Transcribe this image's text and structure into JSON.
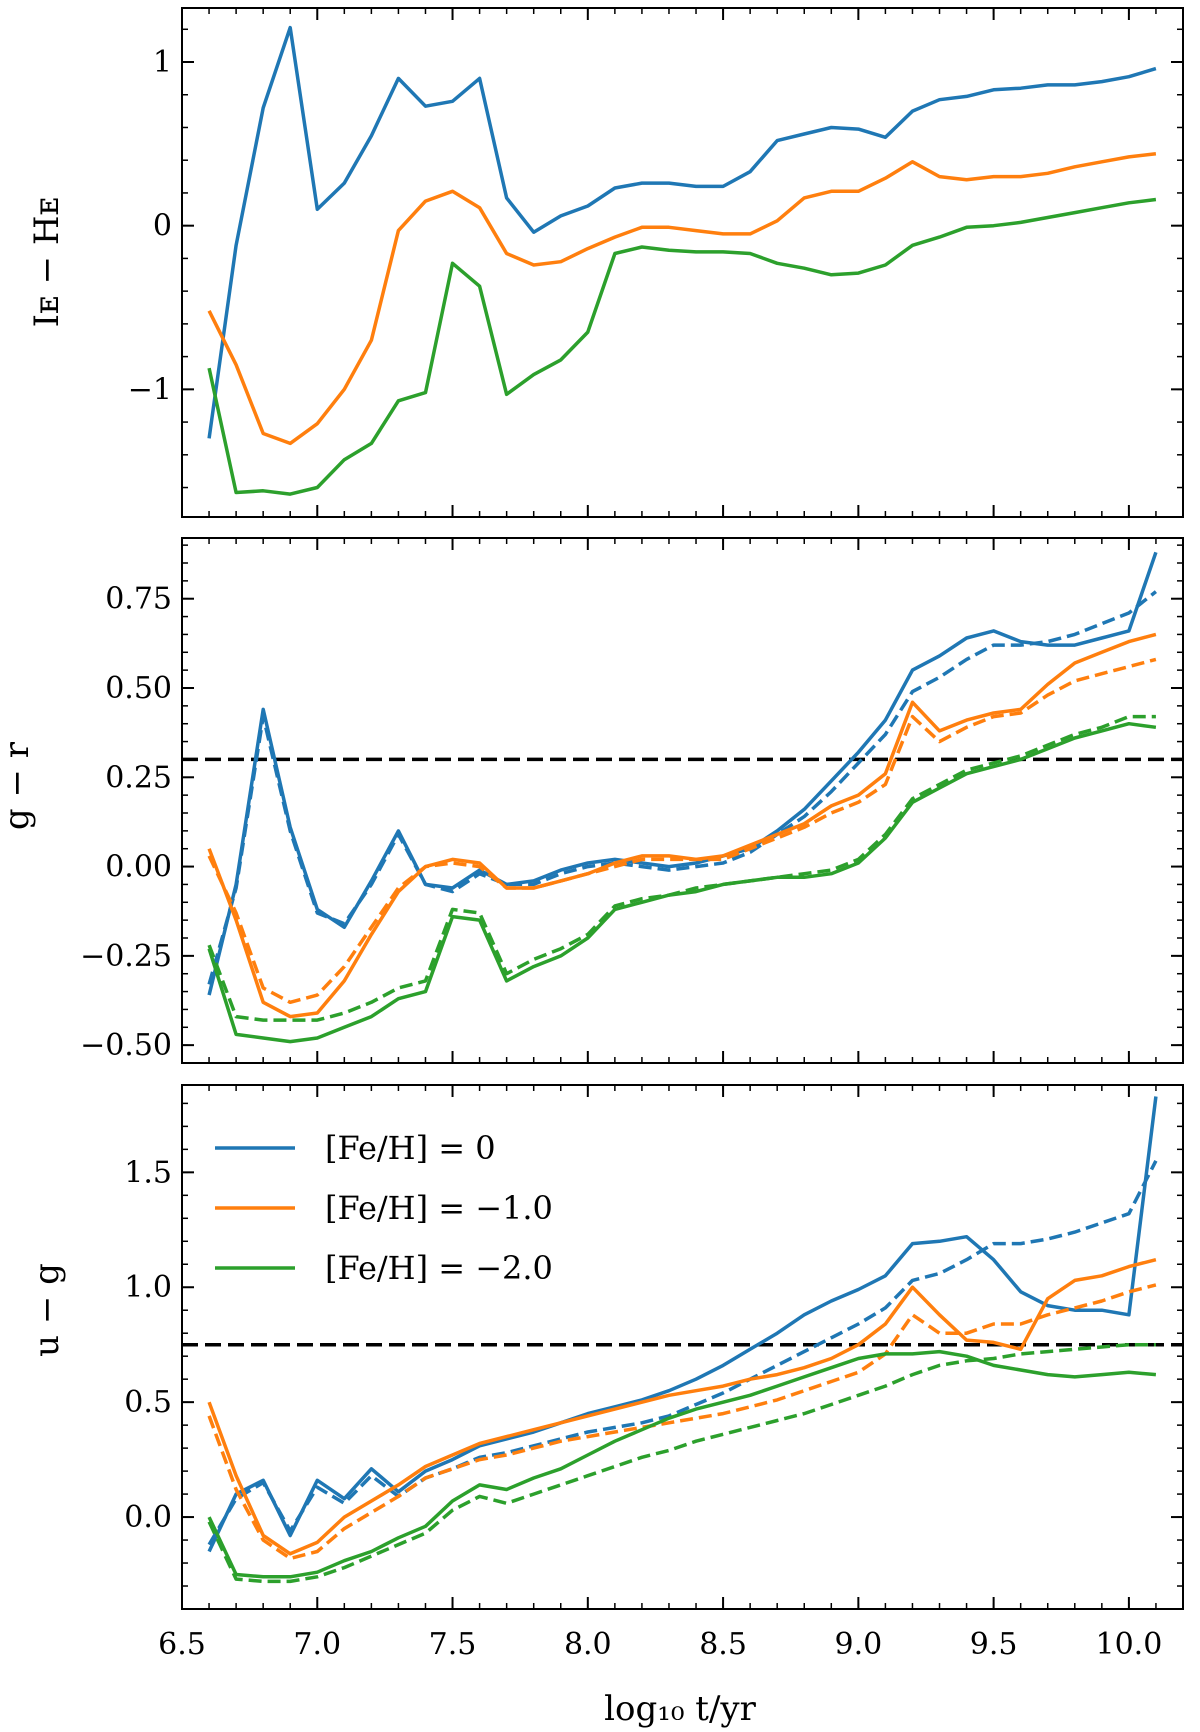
{
  "x_axis": {
    "label": "log₁₀ t/yr",
    "ticks": [
      "6.5",
      "7.0",
      "7.5",
      "8.0",
      "8.5",
      "9.0",
      "9.5",
      "10.0"
    ]
  },
  "legend": [
    "[Fe/H] = 0",
    "[Fe/H] = −1.0",
    "[Fe/H] = −2.0"
  ],
  "colors": {
    "fe0": "#1f77b4",
    "fem1": "#ff7f0e",
    "fem2": "#2ca02c",
    "reference_line": "#000000"
  },
  "chart_data": [
    {
      "type": "line",
      "ylabel": "I_E − H_E",
      "ylabel_text": "Iᴇ − Hᴇ",
      "xlim": [
        6.5,
        10.2
      ],
      "ylim": [
        -1.78,
        1.33
      ],
      "yticks": [
        1,
        0,
        -1
      ],
      "ytick_labels": [
        "1",
        "0",
        "−1"
      ],
      "x": [
        6.6,
        6.7,
        6.8,
        6.9,
        7.0,
        7.1,
        7.2,
        7.3,
        7.4,
        7.5,
        7.6,
        7.7,
        7.8,
        7.9,
        8.0,
        8.1,
        8.2,
        8.3,
        8.4,
        8.5,
        8.6,
        8.7,
        8.8,
        8.9,
        9.0,
        9.1,
        9.2,
        9.3,
        9.4,
        9.5,
        9.6,
        9.7,
        9.8,
        9.9,
        10.0,
        10.1
      ],
      "series": [
        {
          "name": "[Fe/H] = 0",
          "color_key": "fe0",
          "style": "solid",
          "values": [
            -1.3,
            -0.12,
            0.72,
            1.21,
            0.1,
            0.26,
            0.55,
            0.9,
            0.73,
            0.76,
            0.9,
            0.17,
            -0.04,
            0.06,
            0.12,
            0.23,
            0.26,
            0.26,
            0.24,
            0.24,
            0.33,
            0.52,
            0.56,
            0.6,
            0.59,
            0.54,
            0.7,
            0.77,
            0.79,
            0.83,
            0.84,
            0.86,
            0.86,
            0.88,
            0.91,
            0.96
          ]
        },
        {
          "name": "[Fe/H] = −1.0",
          "color_key": "fem1",
          "style": "solid",
          "values": [
            -0.52,
            -0.85,
            -1.27,
            -1.33,
            -1.21,
            -1.0,
            -0.7,
            -0.03,
            0.15,
            0.21,
            0.11,
            -0.17,
            -0.24,
            -0.22,
            -0.14,
            -0.07,
            -0.01,
            -0.01,
            -0.03,
            -0.05,
            -0.05,
            0.03,
            0.17,
            0.21,
            0.21,
            0.29,
            0.39,
            0.3,
            0.28,
            0.3,
            0.3,
            0.32,
            0.36,
            0.39,
            0.42,
            0.44
          ]
        },
        {
          "name": "[Fe/H] = −2.0",
          "color_key": "fem2",
          "style": "solid",
          "values": [
            -0.87,
            -1.63,
            -1.62,
            -1.64,
            -1.6,
            -1.43,
            -1.33,
            -1.07,
            -1.02,
            -0.23,
            -0.37,
            -1.03,
            -0.91,
            -0.82,
            -0.65,
            -0.17,
            -0.13,
            -0.15,
            -0.16,
            -0.16,
            -0.17,
            -0.23,
            -0.26,
            -0.3,
            -0.29,
            -0.24,
            -0.12,
            -0.07,
            -0.01,
            0.0,
            0.02,
            0.05,
            0.08,
            0.11,
            0.14,
            0.16
          ]
        }
      ]
    },
    {
      "type": "line",
      "ylabel": "g − r",
      "ylabel_text": "g − r",
      "xlim": [
        6.5,
        10.2
      ],
      "ylim": [
        -0.55,
        0.92
      ],
      "yticks": [
        0.75,
        0.5,
        0.25,
        0.0,
        -0.25,
        -0.5
      ],
      "ytick_labels": [
        "0.75",
        "0.50",
        "0.25",
        "0.00",
        "−0.25",
        "−0.50"
      ],
      "hline": 0.3,
      "x": [
        6.6,
        6.7,
        6.8,
        6.9,
        7.0,
        7.1,
        7.2,
        7.3,
        7.4,
        7.5,
        7.6,
        7.7,
        7.8,
        7.9,
        8.0,
        8.1,
        8.2,
        8.3,
        8.4,
        8.5,
        8.6,
        8.7,
        8.8,
        8.9,
        9.0,
        9.1,
        9.2,
        9.3,
        9.4,
        9.5,
        9.6,
        9.7,
        9.8,
        9.9,
        10.0,
        10.1
      ],
      "series": [
        {
          "name": "[Fe/H] = 0",
          "color_key": "fe0",
          "style": "solid",
          "values": [
            -0.36,
            -0.05,
            0.44,
            0.11,
            -0.12,
            -0.17,
            -0.04,
            0.1,
            -0.05,
            -0.06,
            -0.01,
            -0.05,
            -0.04,
            -0.01,
            0.01,
            0.02,
            0.01,
            0.0,
            0.01,
            0.03,
            0.05,
            0.1,
            0.16,
            0.24,
            0.32,
            0.41,
            0.55,
            0.59,
            0.64,
            0.66,
            0.63,
            0.62,
            0.62,
            0.64,
            0.66,
            0.88
          ]
        },
        {
          "name": "[Fe/H] = 0 (dashed)",
          "color_key": "fe0",
          "style": "dashed",
          "values": [
            -0.33,
            -0.06,
            0.42,
            0.1,
            -0.13,
            -0.16,
            -0.05,
            0.09,
            -0.05,
            -0.07,
            -0.02,
            -0.05,
            -0.05,
            -0.02,
            0.0,
            0.01,
            0.0,
            -0.01,
            0.0,
            0.01,
            0.04,
            0.09,
            0.14,
            0.21,
            0.29,
            0.37,
            0.49,
            0.53,
            0.58,
            0.62,
            0.62,
            0.63,
            0.65,
            0.68,
            0.71,
            0.77
          ]
        },
        {
          "name": "[Fe/H] = −1.0",
          "color_key": "fem1",
          "style": "solid",
          "values": [
            0.05,
            -0.15,
            -0.38,
            -0.42,
            -0.41,
            -0.32,
            -0.19,
            -0.07,
            0.0,
            0.02,
            0.01,
            -0.06,
            -0.06,
            -0.04,
            -0.02,
            0.01,
            0.03,
            0.03,
            0.02,
            0.03,
            0.06,
            0.09,
            0.12,
            0.17,
            0.2,
            0.26,
            0.46,
            0.38,
            0.41,
            0.43,
            0.44,
            0.51,
            0.57,
            0.6,
            0.63,
            0.65
          ]
        },
        {
          "name": "[Fe/H] = −1.0 (dashed)",
          "color_key": "fem1",
          "style": "dashed",
          "values": [
            0.03,
            -0.13,
            -0.34,
            -0.38,
            -0.36,
            -0.28,
            -0.17,
            -0.06,
            0.0,
            0.01,
            0.0,
            -0.06,
            -0.06,
            -0.04,
            -0.02,
            0.0,
            0.02,
            0.02,
            0.02,
            0.02,
            0.05,
            0.08,
            0.11,
            0.15,
            0.18,
            0.23,
            0.42,
            0.35,
            0.39,
            0.42,
            0.43,
            0.48,
            0.52,
            0.54,
            0.56,
            0.58
          ]
        },
        {
          "name": "[Fe/H] = −2.0",
          "color_key": "fem2",
          "style": "solid",
          "values": [
            -0.23,
            -0.47,
            -0.48,
            -0.49,
            -0.48,
            -0.45,
            -0.42,
            -0.37,
            -0.35,
            -0.14,
            -0.15,
            -0.32,
            -0.28,
            -0.25,
            -0.2,
            -0.12,
            -0.1,
            -0.08,
            -0.07,
            -0.05,
            -0.04,
            -0.03,
            -0.03,
            -0.02,
            0.01,
            0.08,
            0.18,
            0.22,
            0.26,
            0.28,
            0.3,
            0.33,
            0.36,
            0.38,
            0.4,
            0.39
          ]
        },
        {
          "name": "[Fe/H] = −2.0 (dashed)",
          "color_key": "fem2",
          "style": "dashed",
          "values": [
            -0.22,
            -0.42,
            -0.43,
            -0.43,
            -0.43,
            -0.41,
            -0.38,
            -0.34,
            -0.32,
            -0.12,
            -0.13,
            -0.3,
            -0.26,
            -0.23,
            -0.19,
            -0.11,
            -0.09,
            -0.08,
            -0.06,
            -0.05,
            -0.04,
            -0.03,
            -0.02,
            -0.01,
            0.02,
            0.09,
            0.19,
            0.23,
            0.27,
            0.29,
            0.31,
            0.34,
            0.37,
            0.39,
            0.42,
            0.42
          ]
        }
      ]
    },
    {
      "type": "line",
      "ylabel": "u − g",
      "ylabel_text": "u − g",
      "xlim": [
        6.5,
        10.2
      ],
      "ylim": [
        -0.4,
        1.88
      ],
      "yticks": [
        1.5,
        1.0,
        0.5,
        0.0
      ],
      "ytick_labels": [
        "1.5",
        "1.0",
        "0.5",
        "0.0"
      ],
      "hline": 0.75,
      "x": [
        6.6,
        6.7,
        6.8,
        6.9,
        7.0,
        7.1,
        7.2,
        7.3,
        7.4,
        7.5,
        7.6,
        7.7,
        7.8,
        7.9,
        8.0,
        8.1,
        8.2,
        8.3,
        8.4,
        8.5,
        8.6,
        8.7,
        8.8,
        8.9,
        9.0,
        9.1,
        9.2,
        9.3,
        9.4,
        9.5,
        9.6,
        9.7,
        9.8,
        9.9,
        10.0,
        10.1
      ],
      "series": [
        {
          "name": "[Fe/H] = 0",
          "color_key": "fe0",
          "style": "solid",
          "values": [
            -0.15,
            0.1,
            0.16,
            -0.08,
            0.16,
            0.08,
            0.21,
            0.11,
            0.2,
            0.25,
            0.31,
            0.34,
            0.37,
            0.41,
            0.45,
            0.48,
            0.51,
            0.55,
            0.6,
            0.66,
            0.73,
            0.8,
            0.88,
            0.94,
            0.99,
            1.05,
            1.19,
            1.2,
            1.22,
            1.12,
            0.98,
            0.92,
            0.9,
            0.9,
            0.88,
            1.83
          ]
        },
        {
          "name": "[Fe/H] = 0 (dashed)",
          "color_key": "fe0",
          "style": "dashed",
          "values": [
            -0.12,
            0.08,
            0.15,
            -0.06,
            0.13,
            0.06,
            0.18,
            0.09,
            0.17,
            0.21,
            0.26,
            0.28,
            0.31,
            0.34,
            0.37,
            0.39,
            0.41,
            0.44,
            0.49,
            0.54,
            0.6,
            0.66,
            0.72,
            0.78,
            0.84,
            0.91,
            1.03,
            1.06,
            1.12,
            1.19,
            1.19,
            1.21,
            1.24,
            1.28,
            1.32,
            1.55
          ]
        },
        {
          "name": "[Fe/H] = −1.0",
          "color_key": "fem1",
          "style": "solid",
          "values": [
            0.5,
            0.18,
            -0.08,
            -0.16,
            -0.11,
            0.0,
            0.07,
            0.14,
            0.22,
            0.27,
            0.32,
            0.35,
            0.38,
            0.41,
            0.44,
            0.47,
            0.5,
            0.53,
            0.55,
            0.57,
            0.6,
            0.62,
            0.65,
            0.69,
            0.75,
            0.84,
            1.0,
            0.88,
            0.77,
            0.76,
            0.73,
            0.95,
            1.03,
            1.05,
            1.09,
            1.12
          ]
        },
        {
          "name": "[Fe/H] = −1.0 (dashed)",
          "color_key": "fem1",
          "style": "dashed",
          "values": [
            0.44,
            0.12,
            -0.1,
            -0.18,
            -0.15,
            -0.05,
            0.02,
            0.09,
            0.17,
            0.21,
            0.25,
            0.27,
            0.3,
            0.33,
            0.35,
            0.37,
            0.39,
            0.41,
            0.43,
            0.45,
            0.48,
            0.51,
            0.55,
            0.59,
            0.63,
            0.71,
            0.88,
            0.8,
            0.8,
            0.84,
            0.84,
            0.88,
            0.91,
            0.94,
            0.98,
            1.01
          ]
        },
        {
          "name": "[Fe/H] = −2.0",
          "color_key": "fem2",
          "style": "solid",
          "values": [
            0.0,
            -0.25,
            -0.26,
            -0.26,
            -0.24,
            -0.19,
            -0.15,
            -0.09,
            -0.04,
            0.07,
            0.14,
            0.12,
            0.17,
            0.21,
            0.27,
            0.33,
            0.38,
            0.43,
            0.47,
            0.5,
            0.53,
            0.57,
            0.61,
            0.65,
            0.69,
            0.71,
            0.71,
            0.72,
            0.7,
            0.66,
            0.64,
            0.62,
            0.61,
            0.62,
            0.63,
            0.62
          ]
        },
        {
          "name": "[Fe/H] = −2.0 (dashed)",
          "color_key": "fem2",
          "style": "dashed",
          "values": [
            -0.02,
            -0.27,
            -0.28,
            -0.28,
            -0.26,
            -0.22,
            -0.17,
            -0.12,
            -0.07,
            0.03,
            0.09,
            0.06,
            0.1,
            0.14,
            0.18,
            0.22,
            0.26,
            0.29,
            0.33,
            0.36,
            0.39,
            0.42,
            0.45,
            0.49,
            0.53,
            0.57,
            0.62,
            0.66,
            0.68,
            0.69,
            0.71,
            0.72,
            0.73,
            0.74,
            0.75,
            0.75
          ]
        }
      ]
    }
  ]
}
